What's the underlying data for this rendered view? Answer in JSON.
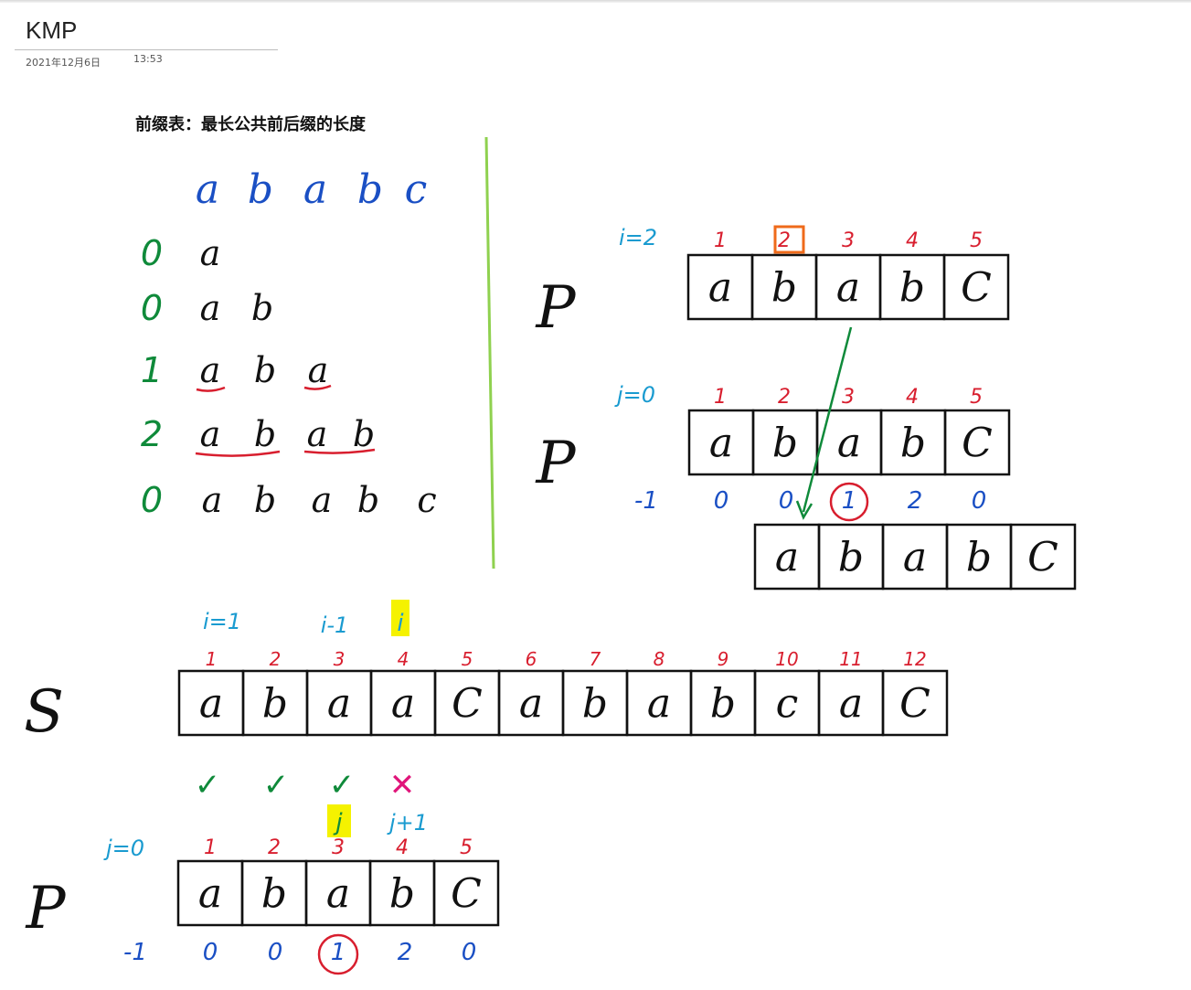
{
  "page": {
    "title": "KMP",
    "date": "2021年12月6日",
    "time": "13:53"
  },
  "heading": "前缀表：最长公共前后缀的长度",
  "prefix_table": {
    "pattern": [
      "a",
      "b",
      "a",
      "b",
      "c"
    ],
    "rows": [
      {
        "len": "0",
        "chars": [
          "a"
        ]
      },
      {
        "len": "0",
        "chars": [
          "a",
          "b"
        ]
      },
      {
        "len": "1",
        "chars": [
          "a",
          "b",
          "a"
        ]
      },
      {
        "len": "2",
        "chars": [
          "a",
          "b",
          "a",
          "b"
        ]
      },
      {
        "len": "0",
        "chars": [
          "a",
          "b",
          "a",
          "b",
          "c"
        ]
      }
    ]
  },
  "labels": {
    "p": "P",
    "s": "S"
  },
  "top_right": {
    "i_label": "i=2",
    "j_label": "j=0",
    "indices": [
      "1",
      "2",
      "3",
      "4",
      "5"
    ],
    "chars": [
      "a",
      "b",
      "a",
      "b",
      "C"
    ],
    "next": [
      "-1",
      "0",
      "0",
      "1",
      "2",
      "0"
    ],
    "shifted_chars": [
      "a",
      "b",
      "a",
      "b",
      "C"
    ]
  },
  "bottom": {
    "i_marks": [
      "i=1",
      "i-1",
      "i"
    ],
    "s_indices": [
      "1",
      "2",
      "3",
      "4",
      "5",
      "6",
      "7",
      "8",
      "9",
      "10",
      "11",
      "12"
    ],
    "s_chars": [
      "a",
      "b",
      "a",
      "a",
      "C",
      "a",
      "b",
      "a",
      "b",
      "c",
      "a",
      "C"
    ],
    "checks": [
      "✓",
      "✓",
      "✓",
      "✕"
    ],
    "j_marks": [
      "j",
      "j+1"
    ],
    "j_label": "j=0",
    "p_indices": [
      "1",
      "2",
      "3",
      "4",
      "5"
    ],
    "p_chars": [
      "a",
      "b",
      "a",
      "b",
      "C"
    ],
    "next": [
      "-1",
      "0",
      "0",
      "1",
      "2",
      "0"
    ]
  },
  "colors": {
    "blue": "#1a4fc4",
    "green": "#0f8a3a",
    "red": "#d81e2e",
    "cyan": "#1a9bd0",
    "orange": "#ef6a1a",
    "lime": "#8fd14f",
    "highlight": "#f5f200",
    "ink": "#111111",
    "pink": "#e0157a"
  }
}
